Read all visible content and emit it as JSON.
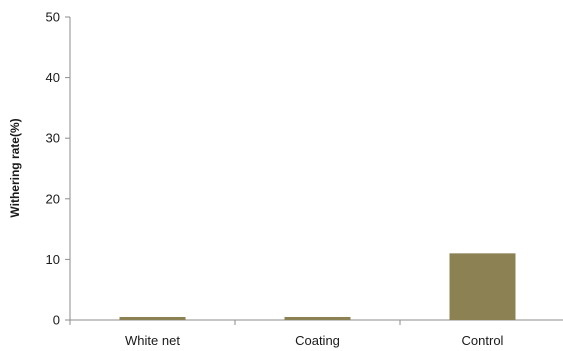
{
  "chart_data": {
    "type": "bar",
    "title": "",
    "xlabel": "",
    "ylabel": "Withering rate(%)",
    "categories": [
      "White net",
      "Coating",
      "Control"
    ],
    "values": [
      0.5,
      0.5,
      11
    ],
    "ylim": [
      0,
      50
    ],
    "yticks": [
      0,
      10,
      20,
      30,
      40,
      50
    ],
    "grid": false,
    "legend": "none",
    "bar_color": "#8b8152"
  }
}
